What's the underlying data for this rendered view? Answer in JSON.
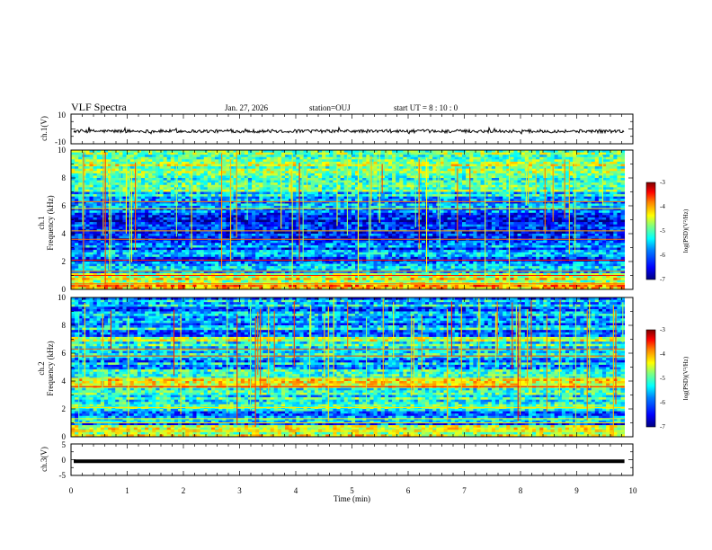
{
  "header": {
    "title": "VLF Spectra",
    "date": "Jan. 27, 2026",
    "station": "station=OUJ",
    "start": "start UT =  8 : 10 : 0"
  },
  "colors": {
    "jet": [
      "#00007f",
      "#0000ff",
      "#007fff",
      "#00ffff",
      "#7fff7f",
      "#ffff00",
      "#ff7f00",
      "#ff0000",
      "#7f0000"
    ]
  },
  "chart_data": [
    {
      "type": "line",
      "name": "ch1-waveform",
      "ylabel": "ch.1(V)",
      "ylim": [
        -10,
        10
      ],
      "yticks": [
        "10",
        "-10"
      ],
      "approx_level": -1.5
    },
    {
      "type": "heatmap",
      "name": "ch1-spectrogram",
      "ylabel_ch": "ch.1",
      "ylabel": "Frequency (kHz)",
      "ylim": [
        0,
        10
      ],
      "yticks": [
        "0",
        "2",
        "4",
        "6",
        "8",
        "10"
      ],
      "xlim": [
        0,
        10
      ],
      "colorbar": {
        "label": "log(PSD)(V²/Hz)",
        "range": [
          -7,
          -3
        ],
        "ticks": [
          "-3",
          "-4",
          "-5",
          "-6",
          "-7"
        ]
      }
    },
    {
      "type": "heatmap",
      "name": "ch2-spectrogram",
      "ylabel_ch": "ch.2",
      "ylabel": "Frequency (kHz)",
      "ylim": [
        0,
        10
      ],
      "yticks": [
        "0",
        "2",
        "4",
        "6",
        "8",
        "10"
      ],
      "xlim": [
        0,
        10
      ],
      "colorbar": {
        "label": "log(PSD)(V²/Hz)",
        "range": [
          -7,
          -3
        ],
        "ticks": [
          "-3",
          "-4",
          "-5",
          "-6",
          "-7"
        ]
      }
    },
    {
      "type": "line",
      "name": "ch3-waveform",
      "ylabel": "ch.3(V)",
      "ylim": [
        -5,
        5
      ],
      "yticks": [
        "5",
        "0",
        "-5"
      ],
      "approx_level": -0.5
    }
  ],
  "xaxis": {
    "label": "Time (min)",
    "range": [
      0,
      10
    ],
    "ticks": [
      "0",
      "1",
      "2",
      "3",
      "4",
      "5",
      "6",
      "7",
      "8",
      "9",
      "10"
    ],
    "data_end": 9.85
  }
}
